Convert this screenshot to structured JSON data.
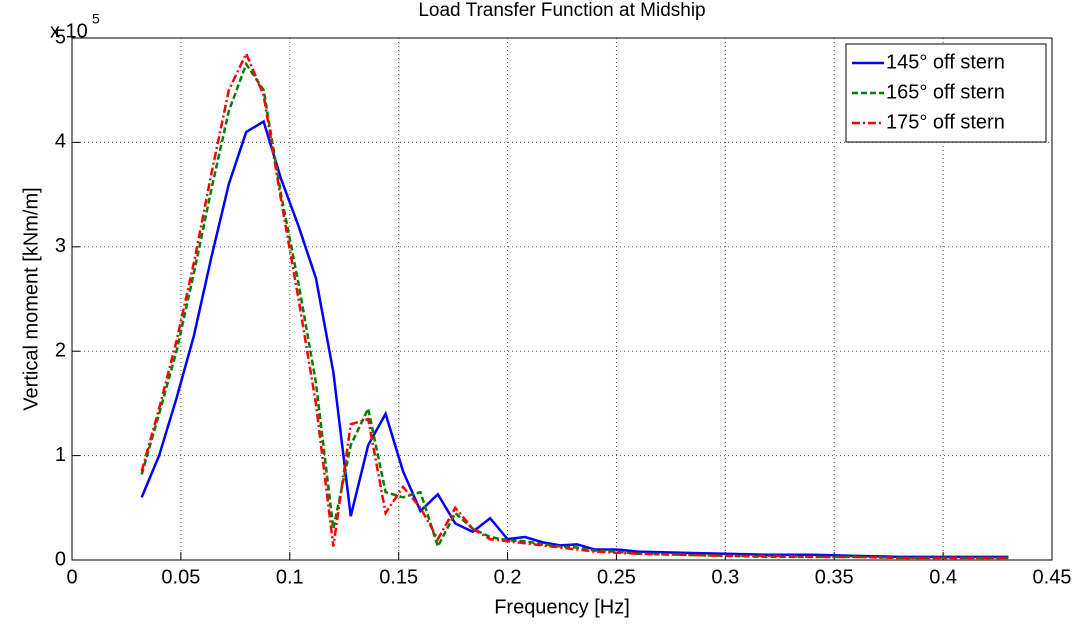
{
  "chart_data": {
    "type": "line",
    "title": "Load Transfer Function at Midship",
    "x_label": "Frequency [Hz]",
    "y_label": "Vertical moment [kNm/m]",
    "y_scale_label": "x 10",
    "y_scale_exponent": "5",
    "x": [
      0.032,
      0.04,
      0.048,
      0.056,
      0.064,
      0.072,
      0.08,
      0.088,
      0.096,
      0.104,
      0.112,
      0.12,
      0.128,
      0.136,
      0.144,
      0.152,
      0.16,
      0.168,
      0.176,
      0.184,
      0.192,
      0.2,
      0.208,
      0.216,
      0.224,
      0.232,
      0.24,
      0.25,
      0.26,
      0.28,
      0.3,
      0.32,
      0.34,
      0.36,
      0.38,
      0.4,
      0.43
    ],
    "series": [
      {
        "name": "145° off stern",
        "color": "#0000ff",
        "dash": "solid",
        "values": [
          0.6,
          1.0,
          1.55,
          2.15,
          2.9,
          3.6,
          4.1,
          4.2,
          3.65,
          3.2,
          2.7,
          1.8,
          0.42,
          1.1,
          1.4,
          0.85,
          0.47,
          0.63,
          0.35,
          0.27,
          0.4,
          0.2,
          0.22,
          0.17,
          0.14,
          0.15,
          0.1,
          0.1,
          0.08,
          0.07,
          0.06,
          0.05,
          0.05,
          0.04,
          0.03,
          0.03,
          0.03
        ]
      },
      {
        "name": "165° off stern",
        "color": "#007f00",
        "dash": "dashed",
        "values": [
          0.82,
          1.4,
          2.0,
          2.75,
          3.55,
          4.3,
          4.75,
          4.5,
          3.5,
          2.65,
          1.7,
          0.3,
          1.1,
          1.45,
          0.65,
          0.6,
          0.65,
          0.13,
          0.45,
          0.3,
          0.22,
          0.19,
          0.18,
          0.15,
          0.13,
          0.12,
          0.09,
          0.08,
          0.06,
          0.05,
          0.04,
          0.03,
          0.03,
          0.03,
          0.02,
          0.02,
          0.02
        ]
      },
      {
        "name": "175° off stern",
        "color": "#ff0000",
        "dash": "dashdot",
        "values": [
          0.85,
          1.45,
          2.1,
          2.85,
          3.7,
          4.5,
          4.85,
          4.45,
          3.45,
          2.5,
          1.5,
          0.13,
          1.3,
          1.35,
          0.45,
          0.7,
          0.5,
          0.2,
          0.5,
          0.3,
          0.2,
          0.18,
          0.16,
          0.14,
          0.12,
          0.1,
          0.08,
          0.07,
          0.06,
          0.05,
          0.04,
          0.04,
          0.03,
          0.03,
          0.02,
          0.02,
          0.02
        ]
      }
    ],
    "xlim": [
      0,
      0.45
    ],
    "xticks": [
      0,
      0.05,
      0.1,
      0.15,
      0.2,
      0.25,
      0.3,
      0.35,
      0.4,
      0.45
    ],
    "ylim": [
      0,
      5
    ],
    "yticks": [
      0,
      1,
      2,
      3,
      4,
      5
    ],
    "grid": true,
    "legend": "upper right"
  }
}
